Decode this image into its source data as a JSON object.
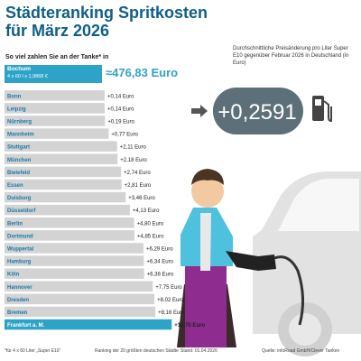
{
  "header": {
    "title_line1": "Städteranking Spritkosten",
    "title_line2": "für März 2026",
    "subtitle": "So viel zahlen Sie an der Tanke* in"
  },
  "bochum": {
    "city": "Bochum",
    "calc": "4 x 60 l x 1,9868 €",
    "total": "≈476,83 Euro"
  },
  "info": {
    "text": "Durchschnittliche Preisänderung pro Liter Super E10 gegenüber Februar 2026 in Deutschland (in Euro)",
    "price_change": "+0,2591"
  },
  "footer": {
    "note": "*für 4 x 60 Liter „Super E10“",
    "ranking": "Ranking der 20 größten deutschen Städte",
    "date": "Stand: 01.04.2026",
    "source": "Quelle: infoRoad GmbH/Clever Tanken"
  },
  "colors": {
    "accent": "#2ea3c8",
    "title": "#0f5f86",
    "bar_bg": "#d3d3d3",
    "highlight": "#2ea3c8"
  },
  "chart_data": {
    "type": "bar",
    "orientation": "horizontal",
    "unit": "Euro",
    "categories": [
      "Bonn",
      "Leipzig",
      "Nürnberg",
      "Mannheim",
      "Stuttgart",
      "München",
      "Bielefeld",
      "Essen",
      "Duisburg",
      "Düsseldorf",
      "Berlin",
      "Dortmund",
      "Wuppertal",
      "Hamburg",
      "Köln",
      "Hannover",
      "Dresden",
      "Bremen",
      "Frankfurt a. M."
    ],
    "values": [
      0.14,
      0.14,
      0.19,
      0.77,
      2.11,
      2.18,
      2.74,
      2.81,
      3.46,
      4.13,
      4.8,
      4.85,
      6.29,
      6.34,
      6.38,
      7.75,
      8.02,
      8.16,
      10.75
    ],
    "labels": [
      "+0,14 Euro",
      "+0,14 Euro",
      "+0,19 Euro",
      "+0,77 Euro",
      "+2,11 Euro",
      "+2,18 Euro",
      "+2,74 Euro",
      "+2,81 Euro",
      "+3,46 Euro",
      "+4,13 Euro",
      "+4,80 Euro",
      "+4,85 Euro",
      "+6,29 Euro",
      "+6,34 Euro",
      "+6,38 Euro",
      "+7,75 Euro",
      "+8,02 Euro",
      "+8,16 Euro",
      "+10,75 Euro"
    ],
    "highlight_index": 18
  }
}
